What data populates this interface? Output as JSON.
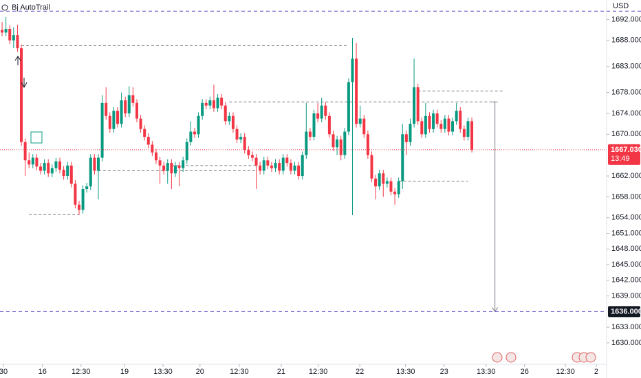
{
  "chart_data": {
    "type": "candlestick",
    "title": "Bj AutoTrail",
    "currency": "USD",
    "up_color": "#089981",
    "down_color": "#f23645",
    "ylim": [
      1625.9,
      1695.74
    ],
    "yticks": [
      {
        "value": 1692,
        "label": "1692.000"
      },
      {
        "value": 1688,
        "label": "1688.000"
      },
      {
        "value": 1683,
        "label": "1683.000"
      },
      {
        "value": 1678,
        "label": "1678.000"
      },
      {
        "value": 1674,
        "label": "1674.000"
      },
      {
        "value": 1670,
        "label": "1670.000"
      },
      {
        "value": 1662,
        "label": "1662.000"
      },
      {
        "value": 1658,
        "label": "1658.000"
      },
      {
        "value": 1654,
        "label": "1654.000"
      },
      {
        "value": 1651,
        "label": "1651.000"
      },
      {
        "value": 1648,
        "label": "1648.000"
      },
      {
        "value": 1645,
        "label": "1645.000"
      },
      {
        "value": 1642,
        "label": "1642.000"
      },
      {
        "value": 1639,
        "label": "1639.000"
      },
      {
        "value": 1633,
        "label": "1633.000"
      },
      {
        "value": 1630,
        "label": "1630.000"
      }
    ],
    "xlim": [
      -0.54,
      157
    ],
    "xticks": [
      {
        "value": 0.36,
        "label": "30"
      },
      {
        "value": 10.5,
        "label": "16"
      },
      {
        "value": 20.5,
        "label": "12:30"
      },
      {
        "value": 31.8,
        "label": "19"
      },
      {
        "value": 41.8,
        "label": "13:30"
      },
      {
        "value": 51.4,
        "label": "20"
      },
      {
        "value": 61.6,
        "label": "12:30"
      },
      {
        "value": 72.5,
        "label": "21"
      },
      {
        "value": 82.1,
        "label": "12:30"
      },
      {
        "value": 92.9,
        "label": "22"
      },
      {
        "value": 104.8,
        "label": "13:30"
      },
      {
        "value": 114.8,
        "label": "23"
      },
      {
        "value": 125.7,
        "label": "13:30"
      },
      {
        "value": 135.7,
        "label": "26"
      },
      {
        "value": 146.3,
        "label": "12:30"
      },
      {
        "value": 154.3,
        "label": "2"
      }
    ],
    "values": [
      [
        1690.0,
        1691.5,
        1688.8,
        1689.5
      ],
      [
        1689.5,
        1692.5,
        1688.8,
        1690.2
      ],
      [
        1690.2,
        1690.9,
        1687.3,
        1688.0
      ],
      [
        1688.0,
        1690.5,
        1686.5,
        1689.0
      ],
      [
        1689.0,
        1691.0,
        1685.8,
        1686.5
      ],
      [
        1686.5,
        1687.2,
        1667.8,
        1668.5
      ],
      [
        1668.5,
        1669.2,
        1662.0,
        1665.0
      ],
      [
        1665.0,
        1666.5,
        1663.5,
        1664.2
      ],
      [
        1664.2,
        1666.2,
        1663.5,
        1665.5
      ],
      [
        1665.5,
        1666.2,
        1663.1,
        1663.8
      ],
      [
        1663.8,
        1664.5,
        1662.3,
        1663.0
      ],
      [
        1663.0,
        1665.2,
        1662.3,
        1664.5
      ],
      [
        1664.5,
        1665.2,
        1661.8,
        1662.5
      ],
      [
        1662.5,
        1664.2,
        1661.8,
        1663.5
      ],
      [
        1663.5,
        1665.5,
        1662.8,
        1664.8
      ],
      [
        1664.8,
        1665.5,
        1662.5,
        1663.2
      ],
      [
        1663.2,
        1663.9,
        1661.3,
        1662.0
      ],
      [
        1662.0,
        1664.7,
        1661.3,
        1664.0
      ],
      [
        1664.0,
        1664.7,
        1659.8,
        1660.5
      ],
      [
        1660.5,
        1661.2,
        1655.8,
        1656.5
      ],
      [
        1656.5,
        1657.2,
        1654.5,
        1655.5
      ],
      [
        1655.5,
        1660.2,
        1654.8,
        1659.5
      ],
      [
        1659.5,
        1660.7,
        1658.8,
        1660.0
      ],
      [
        1660.0,
        1666.2,
        1659.3,
        1665.5
      ],
      [
        1665.5,
        1666.2,
        1662.3,
        1663.0
      ],
      [
        1663.0,
        1666.2,
        1657.5,
        1665.5
      ],
      [
        1665.5,
        1677.5,
        1664.8,
        1676.0
      ],
      [
        1676.0,
        1679.0,
        1672.8,
        1673.5
      ],
      [
        1673.5,
        1674.2,
        1670.3,
        1671.0
      ],
      [
        1671.0,
        1675.2,
        1670.3,
        1674.5
      ],
      [
        1674.5,
        1675.2,
        1671.3,
        1672.0
      ],
      [
        1672.0,
        1678.0,
        1671.3,
        1676.5
      ],
      [
        1676.5,
        1677.2,
        1673.3,
        1674.0
      ],
      [
        1674.0,
        1679.2,
        1673.3,
        1677.5
      ],
      [
        1677.5,
        1679.0,
        1675.3,
        1676.0
      ],
      [
        1676.0,
        1676.7,
        1672.3,
        1673.0
      ],
      [
        1673.0,
        1673.7,
        1670.3,
        1671.0
      ],
      [
        1671.0,
        1671.7,
        1668.8,
        1669.5
      ],
      [
        1669.5,
        1670.2,
        1667.3,
        1668.0
      ],
      [
        1668.0,
        1668.7,
        1665.8,
        1666.5
      ],
      [
        1666.5,
        1667.2,
        1664.3,
        1665.0
      ],
      [
        1665.0,
        1665.7,
        1660.5,
        1664.0
      ],
      [
        1664.0,
        1664.7,
        1662.3,
        1663.0
      ],
      [
        1663.0,
        1665.2,
        1660.5,
        1664.5
      ],
      [
        1664.5,
        1665.2,
        1659.5,
        1662.5
      ],
      [
        1662.5,
        1664.7,
        1661.8,
        1664.0
      ],
      [
        1664.0,
        1664.7,
        1660.0,
        1663.5
      ],
      [
        1663.5,
        1665.7,
        1662.8,
        1665.0
      ],
      [
        1665.0,
        1669.2,
        1664.3,
        1668.5
      ],
      [
        1668.5,
        1672.5,
        1667.8,
        1670.5
      ],
      [
        1670.5,
        1671.2,
        1669.3,
        1670.0
      ],
      [
        1670.0,
        1674.2,
        1669.3,
        1673.5
      ],
      [
        1673.5,
        1676.7,
        1672.8,
        1676.0
      ],
      [
        1676.0,
        1676.7,
        1674.8,
        1675.5
      ],
      [
        1675.5,
        1677.2,
        1674.8,
        1676.5
      ],
      [
        1676.5,
        1679.5,
        1674.3,
        1675.0
      ],
      [
        1675.0,
        1677.7,
        1674.3,
        1677.0
      ],
      [
        1677.0,
        1677.7,
        1674.8,
        1675.5
      ],
      [
        1675.5,
        1676.2,
        1671.8,
        1672.5
      ],
      [
        1672.5,
        1674.2,
        1671.8,
        1673.5
      ],
      [
        1673.5,
        1674.2,
        1670.3,
        1671.0
      ],
      [
        1671.0,
        1671.7,
        1668.3,
        1669.0
      ],
      [
        1669.0,
        1670.2,
        1668.3,
        1669.5
      ],
      [
        1669.5,
        1670.2,
        1666.3,
        1667.0
      ],
      [
        1667.0,
        1667.7,
        1665.3,
        1666.0
      ],
      [
        1666.0,
        1666.7,
        1664.8,
        1665.5
      ],
      [
        1665.5,
        1666.2,
        1659.5,
        1664.0
      ],
      [
        1664.0,
        1664.7,
        1662.3,
        1663.0
      ],
      [
        1663.0,
        1665.7,
        1662.3,
        1665.0
      ],
      [
        1665.0,
        1665.7,
        1663.3,
        1664.0
      ],
      [
        1664.0,
        1664.7,
        1662.8,
        1663.5
      ],
      [
        1663.5,
        1665.2,
        1662.8,
        1664.5
      ],
      [
        1664.5,
        1665.2,
        1662.3,
        1663.0
      ],
      [
        1663.0,
        1666.2,
        1662.3,
        1665.5
      ],
      [
        1665.5,
        1666.2,
        1663.8,
        1664.5
      ],
      [
        1664.5,
        1665.2,
        1662.3,
        1663.0
      ],
      [
        1663.0,
        1664.7,
        1662.3,
        1664.0
      ],
      [
        1664.0,
        1664.7,
        1661.3,
        1662.0
      ],
      [
        1662.0,
        1666.7,
        1661.3,
        1666.0
      ],
      [
        1666.0,
        1676.0,
        1665.3,
        1670.5
      ],
      [
        1670.5,
        1671.2,
        1668.8,
        1669.5
      ],
      [
        1669.5,
        1674.7,
        1668.8,
        1674.0
      ],
      [
        1674.0,
        1676.0,
        1672.3,
        1673.0
      ],
      [
        1673.0,
        1677.0,
        1672.3,
        1675.5
      ],
      [
        1675.5,
        1676.2,
        1672.8,
        1673.5
      ],
      [
        1673.5,
        1674.2,
        1669.3,
        1670.0
      ],
      [
        1670.0,
        1670.7,
        1666.8,
        1667.5
      ],
      [
        1667.5,
        1669.7,
        1666.0,
        1669.0
      ],
      [
        1669.0,
        1669.7,
        1665.0,
        1666.0
      ],
      [
        1666.0,
        1671.2,
        1665.3,
        1670.5
      ],
      [
        1670.5,
        1680.7,
        1669.8,
        1680.0
      ],
      [
        1680.0,
        1688.5,
        1654.5,
        1684.5
      ],
      [
        1684.5,
        1687.5,
        1671.3,
        1672.0
      ],
      [
        1672.0,
        1675.5,
        1671.3,
        1673.0
      ],
      [
        1673.0,
        1673.7,
        1669.3,
        1670.0
      ],
      [
        1670.0,
        1670.7,
        1665.3,
        1666.0
      ],
      [
        1666.0,
        1666.7,
        1660.8,
        1661.5
      ],
      [
        1661.5,
        1662.2,
        1657.5,
        1660.0
      ],
      [
        1660.0,
        1663.2,
        1659.3,
        1662.5
      ],
      [
        1662.5,
        1663.2,
        1658.0,
        1660.5
      ],
      [
        1660.5,
        1661.7,
        1659.8,
        1661.0
      ],
      [
        1661.0,
        1661.7,
        1658.3,
        1659.0
      ],
      [
        1659.0,
        1659.7,
        1656.5,
        1658.5
      ],
      [
        1658.5,
        1661.7,
        1657.8,
        1661.0
      ],
      [
        1661.0,
        1672.0,
        1659.5,
        1670.0
      ],
      [
        1670.0,
        1670.7,
        1666.0,
        1668.5
      ],
      [
        1668.5,
        1673.0,
        1667.8,
        1672.0
      ],
      [
        1672.0,
        1684.5,
        1671.3,
        1679.0
      ],
      [
        1679.0,
        1679.7,
        1671.8,
        1672.5
      ],
      [
        1672.5,
        1673.2,
        1669.3,
        1670.0
      ],
      [
        1670.0,
        1676.0,
        1669.3,
        1673.5
      ],
      [
        1673.5,
        1674.2,
        1670.3,
        1671.0
      ],
      [
        1671.0,
        1674.7,
        1670.3,
        1674.0
      ],
      [
        1674.0,
        1674.7,
        1671.3,
        1672.0
      ],
      [
        1672.0,
        1672.7,
        1670.3,
        1671.0
      ],
      [
        1671.0,
        1673.7,
        1670.3,
        1673.0
      ],
      [
        1673.0,
        1673.7,
        1669.8,
        1670.5
      ],
      [
        1670.5,
        1673.2,
        1669.8,
        1672.5
      ],
      [
        1672.5,
        1676.0,
        1671.8,
        1674.5
      ],
      [
        1674.5,
        1675.2,
        1670.3,
        1671.0
      ],
      [
        1671.0,
        1671.7,
        1668.8,
        1669.5
      ],
      [
        1669.5,
        1673.2,
        1668.8,
        1672.5
      ],
      [
        1672.5,
        1673.2,
        1666.5,
        1667.03
      ]
    ],
    "levels": [
      1687,
      1676.2,
      1678.3,
      1663,
      1664,
      1661,
      1654.6
    ],
    "upper_line": 1693.6,
    "target": {
      "value": 1636,
      "label": "1636.000"
    },
    "last_price": {
      "value": 1667.03,
      "label": "1667.030"
    },
    "countdown": "13:49"
  }
}
